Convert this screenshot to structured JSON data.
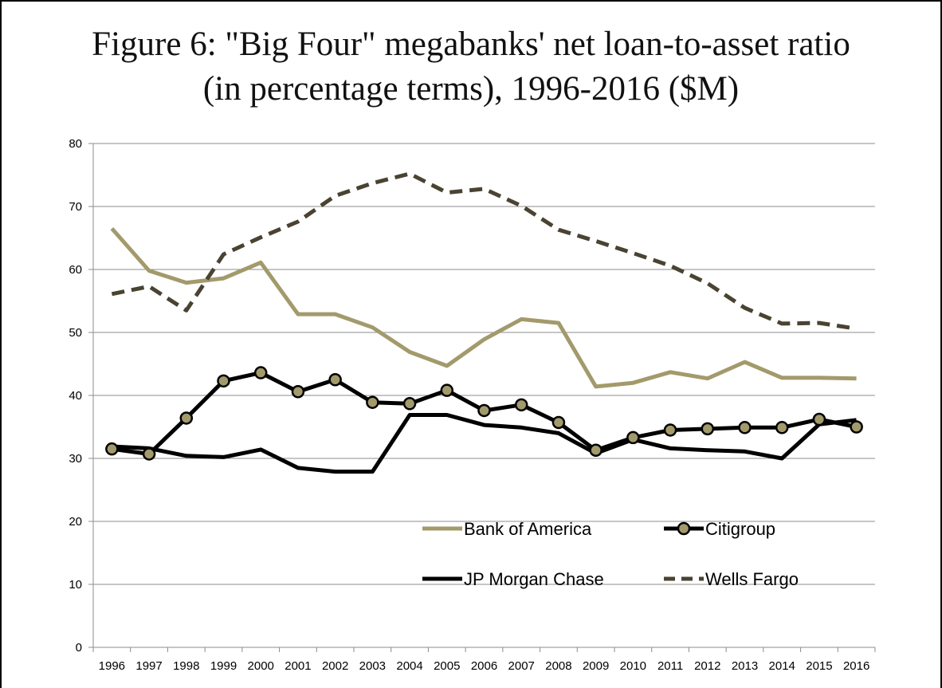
{
  "chart_data": {
    "type": "line",
    "title": "Figure 6: \"Big Four\" megabanks' net loan-to-asset ratio\n(in percentage terms), 1996-2016 ($M)",
    "xlabel": "",
    "ylabel": "",
    "ylim": [
      0,
      80
    ],
    "yticks": [
      0,
      10,
      20,
      30,
      40,
      50,
      60,
      70,
      80
    ],
    "grid": "horizontal",
    "legend_position": "lower-right, inside plot",
    "categories": [
      "1996",
      "1997",
      "1998",
      "1999",
      "2000",
      "2001",
      "2002",
      "2003",
      "2004",
      "2005",
      "2006",
      "2007",
      "2008",
      "2009",
      "2010",
      "2011",
      "2012",
      "2013",
      "2014",
      "2015",
      "2016"
    ],
    "series": [
      {
        "name": "Bank of America",
        "style": "solid",
        "color": "#a39a6c",
        "marker": "none",
        "values": [
          66.5,
          59.8,
          57.9,
          58.6,
          61.1,
          52.9,
          52.9,
          50.8,
          46.9,
          44.7,
          48.9,
          52.1,
          51.5,
          41.4,
          42.0,
          43.7,
          42.7,
          45.3,
          42.8,
          42.8,
          42.7
        ]
      },
      {
        "name": "Citigroup",
        "style": "solid",
        "color": "#000000",
        "marker": "circle",
        "marker_fill": "#a39a6c",
        "values": [
          31.5,
          30.7,
          36.4,
          42.3,
          43.6,
          40.6,
          42.5,
          38.9,
          38.7,
          40.8,
          37.6,
          38.5,
          35.7,
          31.3,
          33.3,
          34.5,
          34.7,
          34.9,
          34.9,
          36.2,
          35.0
        ]
      },
      {
        "name": "JP Morgan Chase",
        "style": "solid",
        "color": "#000000",
        "marker": "none",
        "values": [
          31.9,
          31.6,
          30.4,
          30.2,
          31.4,
          28.5,
          27.9,
          27.9,
          36.9,
          36.9,
          35.3,
          34.9,
          34.0,
          30.8,
          33.0,
          31.6,
          31.3,
          31.1,
          30.0,
          35.4,
          36.1
        ]
      },
      {
        "name": "Wells Fargo",
        "style": "dashed",
        "color": "#4a4332",
        "marker": "none",
        "values": [
          56.1,
          57.3,
          53.5,
          62.4,
          65.1,
          67.6,
          71.7,
          73.7,
          75.2,
          72.2,
          72.8,
          70.1,
          66.3,
          64.5,
          62.6,
          60.6,
          57.8,
          53.9,
          51.4,
          51.5,
          50.6
        ]
      }
    ]
  }
}
